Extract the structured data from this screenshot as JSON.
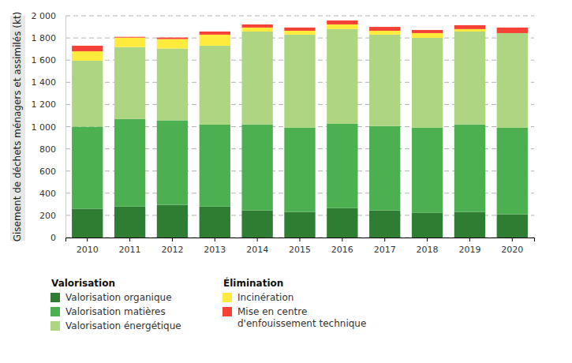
{
  "chart_data": {
    "type": "bar",
    "stacked": true,
    "grid": true,
    "legend": "bottom",
    "y_label": "Gisement de déchets ménagers et assimilés (kt)",
    "categories": [
      "2010",
      "2011",
      "2012",
      "2013",
      "2014",
      "2015",
      "2016",
      "2017",
      "2018",
      "2019",
      "2020"
    ],
    "ylim": [
      0,
      2000
    ],
    "yticks": [
      0,
      200,
      400,
      600,
      800,
      {
        "value": 1000,
        "label": "1 000"
      },
      {
        "value": 1200,
        "label": "1 200"
      },
      {
        "value": 1400,
        "label": "1 400"
      },
      {
        "value": 1600,
        "label": "1 600"
      },
      {
        "value": 1800,
        "label": "1 800"
      },
      {
        "value": 2000,
        "label": "2 000"
      }
    ],
    "series": [
      {
        "name": "Valorisation organique",
        "group": "Valorisation",
        "color": "#2e7d32",
        "values": [
          260,
          280,
          295,
          280,
          245,
          230,
          265,
          245,
          225,
          230,
          210
        ]
      },
      {
        "name": "Valorisation matières",
        "group": "Valorisation",
        "color": "#4caf50",
        "values": [
          740,
          790,
          762,
          738,
          775,
          760,
          760,
          760,
          765,
          790,
          780
        ]
      },
      {
        "name": "Valorisation énergétique",
        "group": "Valorisation",
        "color": "#aed581",
        "values": [
          595,
          648,
          648,
          712,
          838,
          840,
          855,
          825,
          811,
          838,
          854
        ]
      },
      {
        "name": "Incinération",
        "group": "Élimination",
        "color": "#ffeb3b",
        "values": [
          85,
          85,
          85,
          100,
          36,
          35,
          42,
          35,
          43,
          22,
          0
        ]
      },
      {
        "name": "Mise en centre d'enfouissement technique",
        "group": "Élimination",
        "color": "#f44336",
        "values": [
          50,
          7,
          14,
          28,
          28,
          29,
          36,
          35,
          28,
          35,
          50
        ]
      }
    ]
  }
}
